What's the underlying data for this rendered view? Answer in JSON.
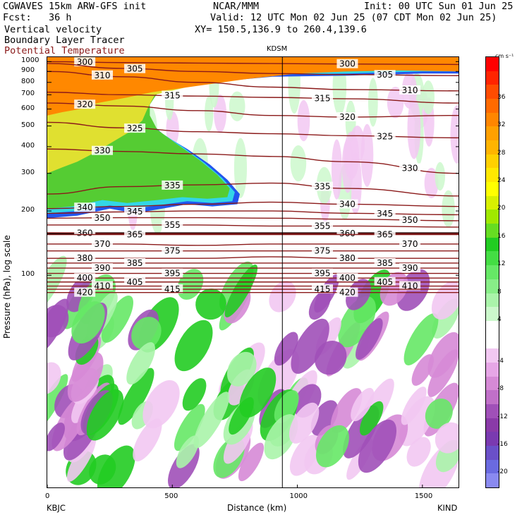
{
  "header": {
    "line1_left": "CGWAVES 15km ARW-GFS init",
    "line1_mid": "NCAR/MMM",
    "line1_right": "Init: 00 UTC Sun 01 Jun 25",
    "fcst": "Fcst:   36 h",
    "valid": "Valid: 12 UTC Mon 02 Jun 25 (07 CDT Mon 02 Jun 25)",
    "fields": [
      "Vertical velocity",
      "Boundary Layer Tracer",
      "Potential Temperature"
    ],
    "xy": "XY= 150.5,136.9 to 260.4,139.6",
    "theta_color": "#8b1a1a"
  },
  "chart_data": {
    "type": "heatmap",
    "title": "",
    "xlabel": "Distance (km)",
    "ylabel": "Pressure (hPa), log scale",
    "x_ticks": [
      "0",
      "500",
      "1000",
      "1500"
    ],
    "x_tick_values": [
      0,
      500,
      1000,
      1500
    ],
    "xlim": [
      0,
      1650
    ],
    "y_ticks": [
      "100",
      "200",
      "300",
      "400",
      "500",
      "600",
      "700",
      "800",
      "900",
      "1000"
    ],
    "y_tick_values": [
      100,
      200,
      300,
      400,
      500,
      600,
      700,
      800,
      900,
      1000
    ],
    "ylim": [
      1050,
      10
    ],
    "y_scale": "log",
    "stations": {
      "left": "KBJC",
      "mid": "KDSM",
      "right": "KIND"
    },
    "mid_station_km": 940,
    "colorbar": {
      "units": "cm s⁻¹",
      "labels": [
        "36",
        "32",
        "28",
        "24",
        "20",
        "16",
        "12",
        "8",
        "4",
        "0",
        "-4",
        "-8",
        "-12",
        "-16",
        "-20"
      ],
      "label_values": [
        36,
        32,
        28,
        24,
        20,
        16,
        12,
        8,
        4,
        0,
        -4,
        -8,
        -12,
        -16,
        -20
      ],
      "levels": [
        40,
        38,
        36,
        34,
        32,
        30,
        28,
        26,
        24,
        22,
        20,
        18,
        16,
        14,
        12,
        10,
        8,
        6,
        4,
        2,
        -2,
        -4,
        -6,
        -8,
        -10,
        -12,
        -14,
        -16,
        -18,
        -20,
        -22
      ],
      "colors": [
        "#ff0000",
        "#ff2400",
        "#ff4c00",
        "#ff6a00",
        "#ff8600",
        "#ffa000",
        "#ffb400",
        "#ffd000",
        "#ffe800",
        "#ffff00",
        "#d8f000",
        "#a0e800",
        "#66dd22",
        "#22cc22",
        "#44dd44",
        "#66e866",
        "#88ee88",
        "#aaf4aa",
        "#ccf8cc",
        "#ffffff",
        "#ffffff",
        "#f2c8f2",
        "#e6a6e6",
        "#d68ad6",
        "#c070c8",
        "#a050b8",
        "#8a3aa8",
        "#7a3ab0",
        "#6a50c8",
        "#6a6ae0",
        "#8a8af0"
      ]
    },
    "theta_contours": [
      {
        "label": "300",
        "p": [
          1000,
          990,
          985,
          980,
          975,
          970
        ]
      },
      {
        "label": "305",
        "p": [
          980,
          930,
          900,
          880,
          870,
          860
        ]
      },
      {
        "label": "310",
        "p": [
          900,
          850,
          800,
          760,
          740,
          730
        ]
      },
      {
        "label": "315",
        "p": [
          720,
          700,
          690,
          680,
          670,
          640
        ]
      },
      {
        "label": "320",
        "p": [
          640,
          620,
          590,
          560,
          550,
          560
        ]
      },
      {
        "label": "325",
        "p": [
          520,
          490,
          470,
          460,
          450,
          440
        ]
      },
      {
        "label": "330",
        "p": [
          390,
          380,
          370,
          360,
          340,
          300
        ]
      },
      {
        "label": "335",
        "p": [
          240,
          260,
          265,
          270,
          255,
          235
        ]
      },
      {
        "label": "340",
        "p": [
          205,
          210,
          215,
          220,
          215,
          210
        ]
      },
      {
        "label": "345",
        "p": [
          195,
          198,
          200,
          200,
          195,
          192
        ]
      },
      {
        "label": "350",
        "p": [
          185,
          186,
          186,
          185,
          183,
          180
        ]
      },
      {
        "label": "355",
        "p": [
          172,
          172,
          172,
          170,
          170,
          168
        ]
      },
      {
        "label": "360",
        "p": [
          158,
          157,
          157,
          157,
          157,
          157
        ]
      },
      {
        "label": "365",
        "p": [
          155,
          155,
          155,
          155,
          155,
          155
        ]
      },
      {
        "label": "370",
        "p": [
          140,
          140,
          138,
          140,
          140,
          140
        ]
      },
      {
        "label": "375",
        "p": [
          130,
          130,
          130,
          130,
          130,
          130
        ]
      },
      {
        "label": "380",
        "p": [
          120,
          120,
          120,
          122,
          120,
          120
        ]
      },
      {
        "label": "385",
        "p": [
          114,
          114,
          114,
          114,
          114,
          114
        ]
      },
      {
        "label": "390",
        "p": [
          108,
          108,
          108,
          108,
          108,
          108
        ]
      },
      {
        "label": "395",
        "p": [
          102,
          102,
          102,
          102,
          102,
          102
        ]
      },
      {
        "label": "400",
        "p": [
          97,
          97,
          97,
          97,
          97,
          97
        ]
      },
      {
        "label": "405",
        "p": [
          93,
          93,
          93,
          93,
          93,
          93
        ]
      },
      {
        "label": "410",
        "p": [
          89,
          89,
          89,
          89,
          89,
          89
        ]
      },
      {
        "label": "415",
        "p": [
          86,
          86,
          86,
          86,
          86,
          86
        ]
      },
      {
        "label": "420",
        "p": [
          83,
          83,
          83,
          83,
          83,
          83
        ]
      }
    ],
    "contour_x_km": [
      0,
      300,
      600,
      900,
      1200,
      1650
    ]
  }
}
